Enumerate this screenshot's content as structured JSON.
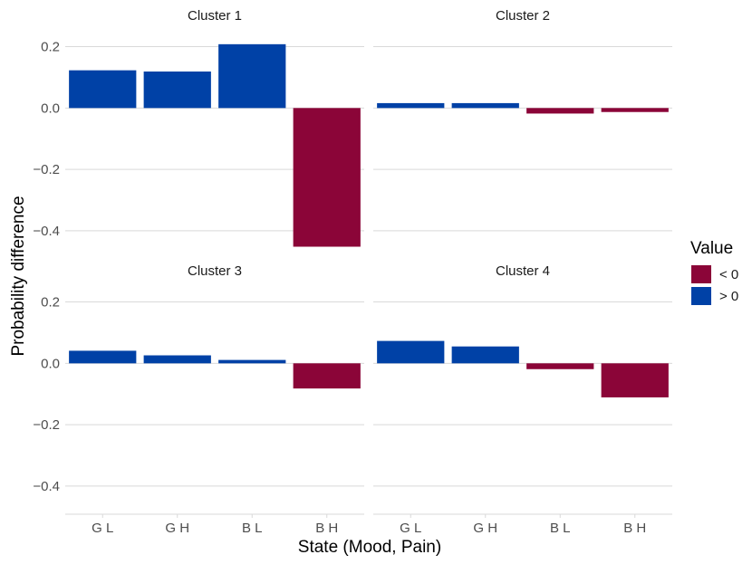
{
  "chart_data": {
    "type": "bar",
    "xlabel": "State (Mood, Pain)",
    "ylabel": "Probability difference",
    "categories": [
      "G L",
      "G H",
      "B L",
      "B H"
    ],
    "y_ticks": [
      0.2,
      0.0,
      -0.2,
      -0.4
    ],
    "y_tick_labels": [
      "0.2",
      "0.0",
      "−0.2",
      "−0.4"
    ],
    "ylim": [
      -0.48,
      0.24
    ],
    "grid": true,
    "legend": {
      "title": "Value",
      "placement": "right",
      "entries": [
        {
          "label": "< 0",
          "color": "#8B0538"
        },
        {
          "label": "> 0",
          "color": "#0041A6"
        }
      ]
    },
    "colors": {
      "negative": "#8B0538",
      "positive": "#0041A6",
      "grid": "#d9d9d9"
    },
    "panels": [
      {
        "title": "Cluster 1",
        "values": [
          0.123,
          0.119,
          0.208,
          -0.452
        ]
      },
      {
        "title": "Cluster 2",
        "values": [
          0.016,
          0.016,
          -0.018,
          -0.013
        ]
      },
      {
        "title": "Cluster 3",
        "values": [
          0.041,
          0.026,
          0.011,
          -0.082
        ]
      },
      {
        "title": "Cluster 4",
        "values": [
          0.073,
          0.055,
          -0.019,
          -0.111
        ]
      }
    ]
  }
}
